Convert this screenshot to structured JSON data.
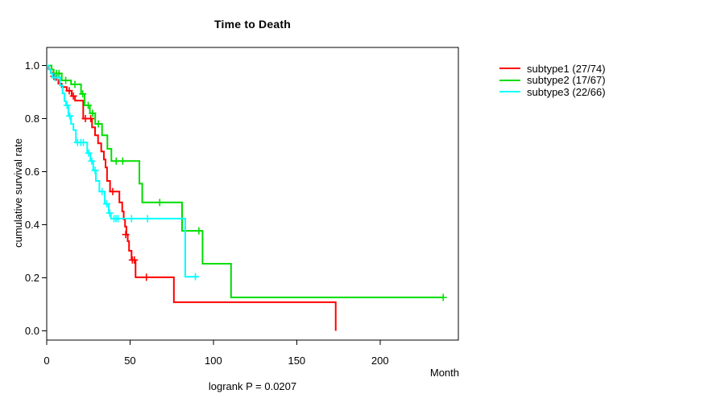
{
  "chart_data": {
    "type": "line",
    "chart_kind": "kaplan-meier-step-curves",
    "title": "Time to Death",
    "xlabel": "Month",
    "ylabel": "cumulative survival rate",
    "footnote": "logrank P = 0.0207",
    "grid": false,
    "legend_position": "right-outside",
    "x_axis": {
      "ticks": [
        0,
        50,
        100,
        150,
        200
      ],
      "label": "Month",
      "range": [
        0,
        247
      ]
    },
    "y_axis": {
      "ticks": [
        "0.0",
        "0.2",
        "0.4",
        "0.6",
        "0.8",
        "1.0"
      ],
      "label": "cumulative survival rate",
      "range": [
        0,
        1
      ]
    },
    "series": [
      {
        "name": "subtype1",
        "label": "subtype1 (27/74)",
        "color": "#FF0000",
        "events": 27,
        "n": 74,
        "end_time": 173.4,
        "steps": [
          [
            0,
            1.0
          ],
          [
            1.2,
            0.986
          ],
          [
            2.4,
            0.973
          ],
          [
            4,
            0.959
          ],
          [
            5.5,
            0.946
          ],
          [
            7,
            0.932
          ],
          [
            9,
            0.919
          ],
          [
            12,
            0.905
          ],
          [
            15,
            0.885
          ],
          [
            17,
            0.868
          ],
          [
            21.9,
            0.8
          ],
          [
            27.2,
            0.767
          ],
          [
            29,
            0.737
          ],
          [
            30.8,
            0.707
          ],
          [
            32.7,
            0.676
          ],
          [
            34.3,
            0.646
          ],
          [
            35.3,
            0.616
          ],
          [
            36.2,
            0.565
          ],
          [
            38,
            0.525
          ],
          [
            43.6,
            0.484
          ],
          [
            45.3,
            0.45
          ],
          [
            46.2,
            0.42
          ],
          [
            47,
            0.393
          ],
          [
            47.8,
            0.363
          ],
          [
            48.6,
            0.338
          ],
          [
            49.4,
            0.302
          ],
          [
            50.9,
            0.267
          ],
          [
            53.3,
            0.202
          ],
          [
            76.3,
            0.108
          ],
          [
            173.4,
            0
          ]
        ],
        "censors": [
          [
            4.3,
            0.959
          ],
          [
            13.5,
            0.905
          ],
          [
            16,
            0.885
          ],
          [
            23.2,
            0.8
          ],
          [
            26.4,
            0.8
          ],
          [
            39.6,
            0.525
          ],
          [
            47.4,
            0.363
          ],
          [
            51.4,
            0.267
          ],
          [
            52.6,
            0.267
          ],
          [
            59.8,
            0.202
          ]
        ]
      },
      {
        "name": "subtype2",
        "label": "subtype2 (17/67)",
        "color": "#00DD00",
        "events": 17,
        "n": 67,
        "end_time": 238,
        "steps": [
          [
            0,
            1.0
          ],
          [
            2.9,
            0.985
          ],
          [
            4.2,
            0.97
          ],
          [
            9,
            0.944
          ],
          [
            14.6,
            0.929
          ],
          [
            20.6,
            0.893
          ],
          [
            22.7,
            0.85
          ],
          [
            25.9,
            0.82
          ],
          [
            29.1,
            0.78
          ],
          [
            33.2,
            0.737
          ],
          [
            36.4,
            0.686
          ],
          [
            38.8,
            0.64
          ],
          [
            55.6,
            0.555
          ],
          [
            57.3,
            0.484
          ],
          [
            81.2,
            0.377
          ],
          [
            93.5,
            0.253
          ],
          [
            110.6,
            0.126
          ]
        ],
        "censors": [
          [
            5.8,
            0.97
          ],
          [
            7.4,
            0.97
          ],
          [
            11.4,
            0.944
          ],
          [
            16.9,
            0.929
          ],
          [
            21.6,
            0.893
          ],
          [
            24.9,
            0.85
          ],
          [
            27.5,
            0.82
          ],
          [
            31,
            0.78
          ],
          [
            41.7,
            0.64
          ],
          [
            45.6,
            0.64
          ],
          [
            67.8,
            0.484
          ],
          [
            91.3,
            0.377
          ],
          [
            237.9,
            0.126
          ]
        ]
      },
      {
        "name": "subtype3",
        "label": "subtype3 (22/66)",
        "color": "#00FFFF",
        "events": 22,
        "n": 66,
        "end_time": 90.3,
        "steps": [
          [
            0,
            1.0
          ],
          [
            1.5,
            0.985
          ],
          [
            2.5,
            0.97
          ],
          [
            3.5,
            0.955
          ],
          [
            8,
            0.925
          ],
          [
            9.5,
            0.895
          ],
          [
            10.6,
            0.866
          ],
          [
            11.6,
            0.85
          ],
          [
            13,
            0.81
          ],
          [
            14.6,
            0.78
          ],
          [
            16,
            0.757
          ],
          [
            17.5,
            0.71
          ],
          [
            24.3,
            0.67
          ],
          [
            26.2,
            0.64
          ],
          [
            27.9,
            0.605
          ],
          [
            29.5,
            0.565
          ],
          [
            31.6,
            0.525
          ],
          [
            34.8,
            0.479
          ],
          [
            37.2,
            0.444
          ],
          [
            38.5,
            0.423
          ],
          [
            83.1,
            0.204
          ]
        ],
        "censors": [
          [
            5,
            0.955
          ],
          [
            6.5,
            0.955
          ],
          [
            12.2,
            0.85
          ],
          [
            13.8,
            0.81
          ],
          [
            18.5,
            0.71
          ],
          [
            20.5,
            0.71
          ],
          [
            22,
            0.71
          ],
          [
            25.2,
            0.67
          ],
          [
            27,
            0.64
          ],
          [
            29,
            0.605
          ],
          [
            33.2,
            0.525
          ],
          [
            36,
            0.479
          ],
          [
            37.8,
            0.444
          ],
          [
            40.4,
            0.423
          ],
          [
            41.6,
            0.423
          ],
          [
            42.8,
            0.423
          ],
          [
            50.9,
            0.423
          ],
          [
            60.5,
            0.423
          ],
          [
            89.2,
            0.204
          ]
        ]
      }
    ]
  }
}
